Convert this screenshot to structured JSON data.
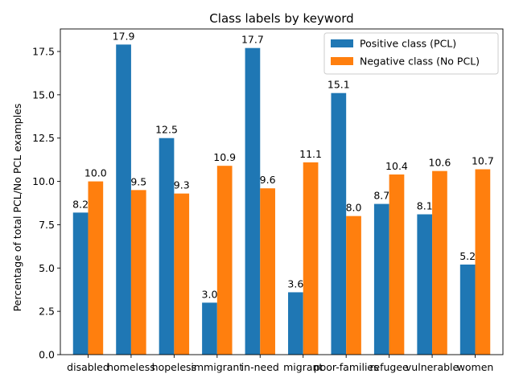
{
  "chart_data": {
    "type": "bar",
    "title": "Class labels by keyword",
    "xlabel": "",
    "ylabel": "Percentage of total PCL/No PCL examples",
    "categories": [
      "disabled",
      "homeless",
      "hopeless",
      "immigrant",
      "in-need",
      "migrant",
      "poor-families",
      "refugee",
      "vulnerable",
      "women"
    ],
    "series": [
      {
        "name": "Positive class (PCL)",
        "color": "#1f77b4",
        "values": [
          8.2,
          17.9,
          12.5,
          3.0,
          17.7,
          3.6,
          15.1,
          8.7,
          8.1,
          5.2
        ]
      },
      {
        "name": "Negative class (No PCL)",
        "color": "#ff7f0e",
        "values": [
          10.0,
          9.5,
          9.3,
          10.9,
          9.6,
          11.1,
          8.0,
          10.4,
          10.6,
          10.7
        ]
      }
    ],
    "ylim": [
      0,
      18.8
    ],
    "yticks": [
      "0.0",
      "2.5",
      "5.0",
      "7.5",
      "10.0",
      "12.5",
      "15.0",
      "17.5"
    ],
    "data_labels": true,
    "grid": false,
    "legend": "top-right"
  }
}
